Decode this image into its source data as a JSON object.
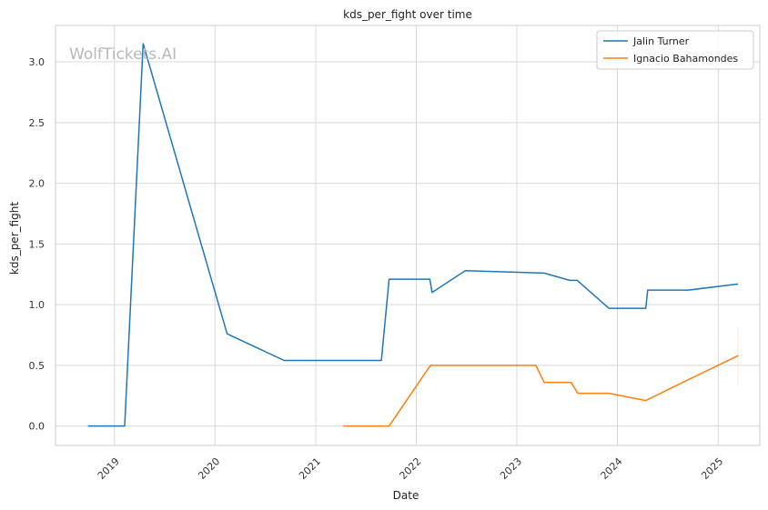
{
  "watermark": "WolfTickets.AI",
  "chart_data": {
    "type": "line",
    "title": "kds_per_fight over time",
    "xlabel": "Date",
    "ylabel": "kds_per_fight",
    "x_ticks": [
      "2019",
      "2020",
      "2021",
      "2022",
      "2023",
      "2024",
      "2025"
    ],
    "y_ticks": [
      "0.0",
      "0.5",
      "1.0",
      "1.5",
      "2.0",
      "2.5",
      "3.0"
    ],
    "xlim": [
      "2018-06-01",
      "2025-06-01"
    ],
    "ylim": [
      -0.16,
      3.3
    ],
    "grid": true,
    "legend": "top-right",
    "series": [
      {
        "name": "Jalin Turner",
        "color": "#1f77b4",
        "points": [
          [
            "2018-09-27",
            0.0
          ],
          [
            "2019-02-07",
            0.0
          ],
          [
            "2019-04-15",
            3.15
          ],
          [
            "2020-02-14",
            0.76
          ],
          [
            "2020-09-08",
            0.54
          ],
          [
            "2021-08-27",
            0.54
          ],
          [
            "2021-09-24",
            1.21
          ],
          [
            "2022-02-19",
            1.21
          ],
          [
            "2022-02-27",
            1.1
          ],
          [
            "2022-06-28",
            1.28
          ],
          [
            "2023-04-10",
            1.26
          ],
          [
            "2023-07-12",
            1.2
          ],
          [
            "2023-08-08",
            1.2
          ],
          [
            "2023-12-01",
            0.97
          ],
          [
            "2024-04-13",
            0.97
          ],
          [
            "2024-04-20",
            1.12
          ],
          [
            "2024-09-15",
            1.12
          ],
          [
            "2025-03-14",
            1.17
          ]
        ]
      },
      {
        "name": "Ignacio Bahamondes",
        "color": "#ff7f0e",
        "points": [
          [
            "2021-04-10",
            0.0
          ],
          [
            "2021-09-24",
            0.0
          ],
          [
            "2022-02-21",
            0.5
          ],
          [
            "2023-03-11",
            0.5
          ],
          [
            "2023-04-10",
            0.36
          ],
          [
            "2023-07-17",
            0.36
          ],
          [
            "2023-08-10",
            0.27
          ],
          [
            "2023-12-01",
            0.27
          ],
          [
            "2024-04-13",
            0.21
          ],
          [
            "2024-10-01",
            0.4
          ],
          [
            "2025-03-14",
            0.58
          ]
        ]
      }
    ]
  }
}
